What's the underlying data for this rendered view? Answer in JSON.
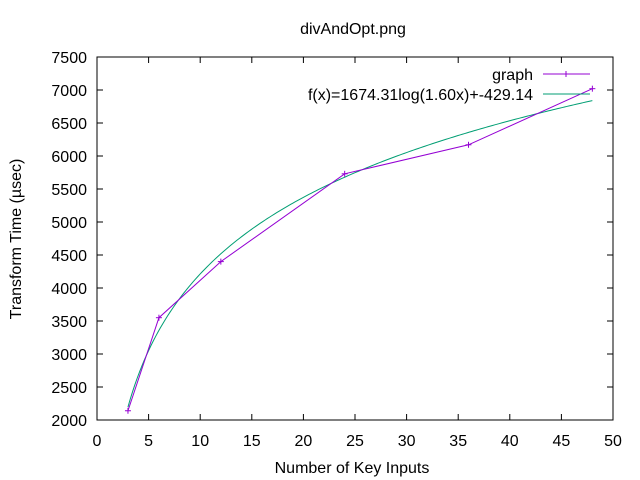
{
  "chart_data": {
    "type": "line",
    "title": "divAndOpt.png",
    "xlabel": "Number of Key Inputs",
    "ylabel": "Transform Time (µsec)",
    "xlim": [
      0,
      50
    ],
    "ylim": [
      2000,
      7500
    ],
    "x_ticks": [
      0,
      5,
      10,
      15,
      20,
      25,
      30,
      35,
      40,
      45,
      50
    ],
    "y_ticks": [
      2000,
      2500,
      3000,
      3500,
      4000,
      4500,
      5000,
      5500,
      6000,
      6500,
      7000,
      7500
    ],
    "grid": false,
    "legend_position": "top-right",
    "series": [
      {
        "name": "graph",
        "color": "#9400d3",
        "marker": "+",
        "x": [
          3,
          6,
          12,
          24,
          36,
          48
        ],
        "y": [
          2140,
          3550,
          4400,
          5730,
          6170,
          7020
        ]
      }
    ],
    "fit": {
      "name": "f(x)=1674.31log(1.60x)+-429.14",
      "color": "#009e73",
      "a": 1674.31,
      "b": 1.6,
      "c": -429.14,
      "x_range": [
        3,
        48
      ]
    }
  }
}
